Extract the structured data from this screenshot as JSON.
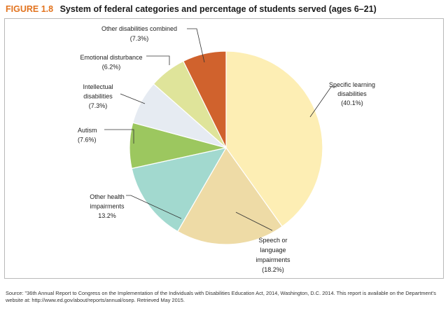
{
  "figure": {
    "number": "FIGURE 1.8",
    "title": "System of federal categories and percentage of students served (ages 6–21)"
  },
  "chart_data": {
    "type": "pie",
    "title": "System of federal categories and percentage of students served (ages 6–21)",
    "slices": [
      {
        "name": "Specific learning disabilities",
        "value": 40.1,
        "color": "#fdeeb4",
        "label_lines": [
          "Specific learning",
          "disabilities",
          "(40.1%)"
        ]
      },
      {
        "name": "Speech or language impairments",
        "value": 18.2,
        "color": "#eedba6",
        "label_lines": [
          "Speech or",
          "language",
          "impairments",
          "(18.2%)"
        ]
      },
      {
        "name": "Other health impairments",
        "value": 13.2,
        "color": "#a2d9cf",
        "label_lines": [
          "Other health",
          "impairments",
          "13.2%"
        ]
      },
      {
        "name": "Autism",
        "value": 7.6,
        "color": "#9cc75f",
        "label_lines": [
          "Autism",
          "(7.6%)"
        ]
      },
      {
        "name": "Intellectual disabilities",
        "value": 7.3,
        "color": "#e6ebf2",
        "label_lines": [
          "Intellectual",
          "disabilities",
          "(7.3%)"
        ]
      },
      {
        "name": "Emotional disturbance",
        "value": 6.2,
        "color": "#dfe49a",
        "label_lines": [
          "Emotional disturbance",
          "(6.2%)"
        ]
      },
      {
        "name": "Other disabilities combined",
        "value": 7.3,
        "color": "#d0622d",
        "label_lines": [
          "Other disabilities combined",
          "(7.3%)"
        ]
      }
    ]
  },
  "source": "Source: \"36th Annual Report to Congress on the Implementation of the Individuals with Disabilities Education Act, 2014, Washington, D.C. 2014. This report is available on the Department's website at: http://www.ed.gov/about/reports/annual/osep. Retrieved May 2015."
}
